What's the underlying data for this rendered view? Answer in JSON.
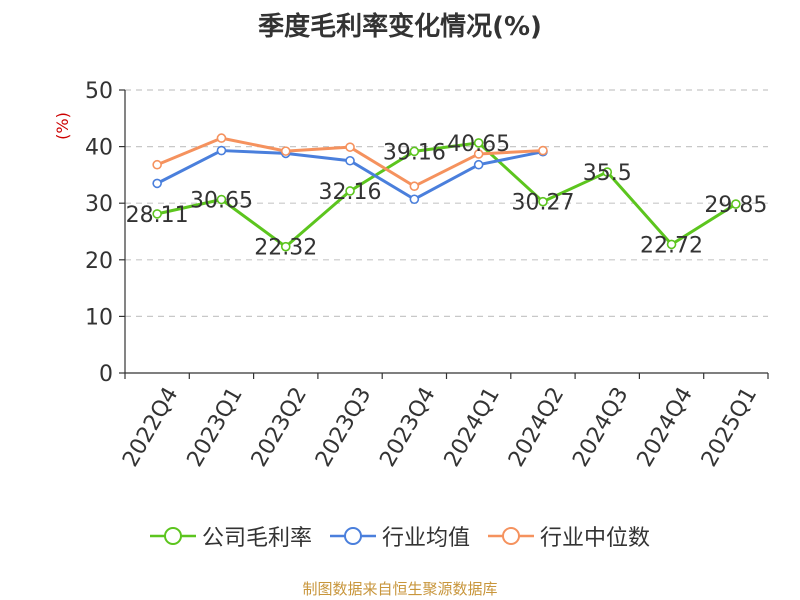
{
  "title": "季度毛利率变化情况(%)",
  "source": "制图数据来自恒生聚源数据库",
  "chart_data": {
    "type": "line",
    "title": "季度毛利率变化情况(%)",
    "ylabel": "(%)",
    "ylim": [
      0,
      50
    ],
    "yticks": [
      0,
      10,
      20,
      30,
      40,
      50
    ],
    "grid": true,
    "legend_position": "bottom",
    "categories": [
      "2022Q4",
      "2023Q1",
      "2023Q2",
      "2023Q3",
      "2023Q4",
      "2024Q1",
      "2024Q2",
      "2024Q3",
      "2024Q4",
      "2025Q1"
    ],
    "series": [
      {
        "name": "公司毛利率",
        "color": "#5cc51e",
        "values": [
          28.11,
          30.65,
          22.32,
          32.16,
          39.16,
          40.65,
          30.27,
          35.5,
          22.72,
          29.85
        ],
        "labels": [
          "28.11",
          "30.65",
          "22.32",
          "32.16",
          "39.16",
          "40.65",
          "30.27",
          "35.5",
          "22.72",
          "29.85"
        ]
      },
      {
        "name": "行业均值",
        "color": "#4a7fdc",
        "values": [
          33.5,
          39.3,
          38.8,
          37.5,
          30.7,
          36.8,
          39.1,
          null,
          null,
          null
        ]
      },
      {
        "name": "行业中位数",
        "color": "#f5925e",
        "values": [
          36.8,
          41.5,
          39.2,
          39.9,
          33.0,
          38.7,
          39.3,
          null,
          null,
          null
        ]
      }
    ]
  }
}
